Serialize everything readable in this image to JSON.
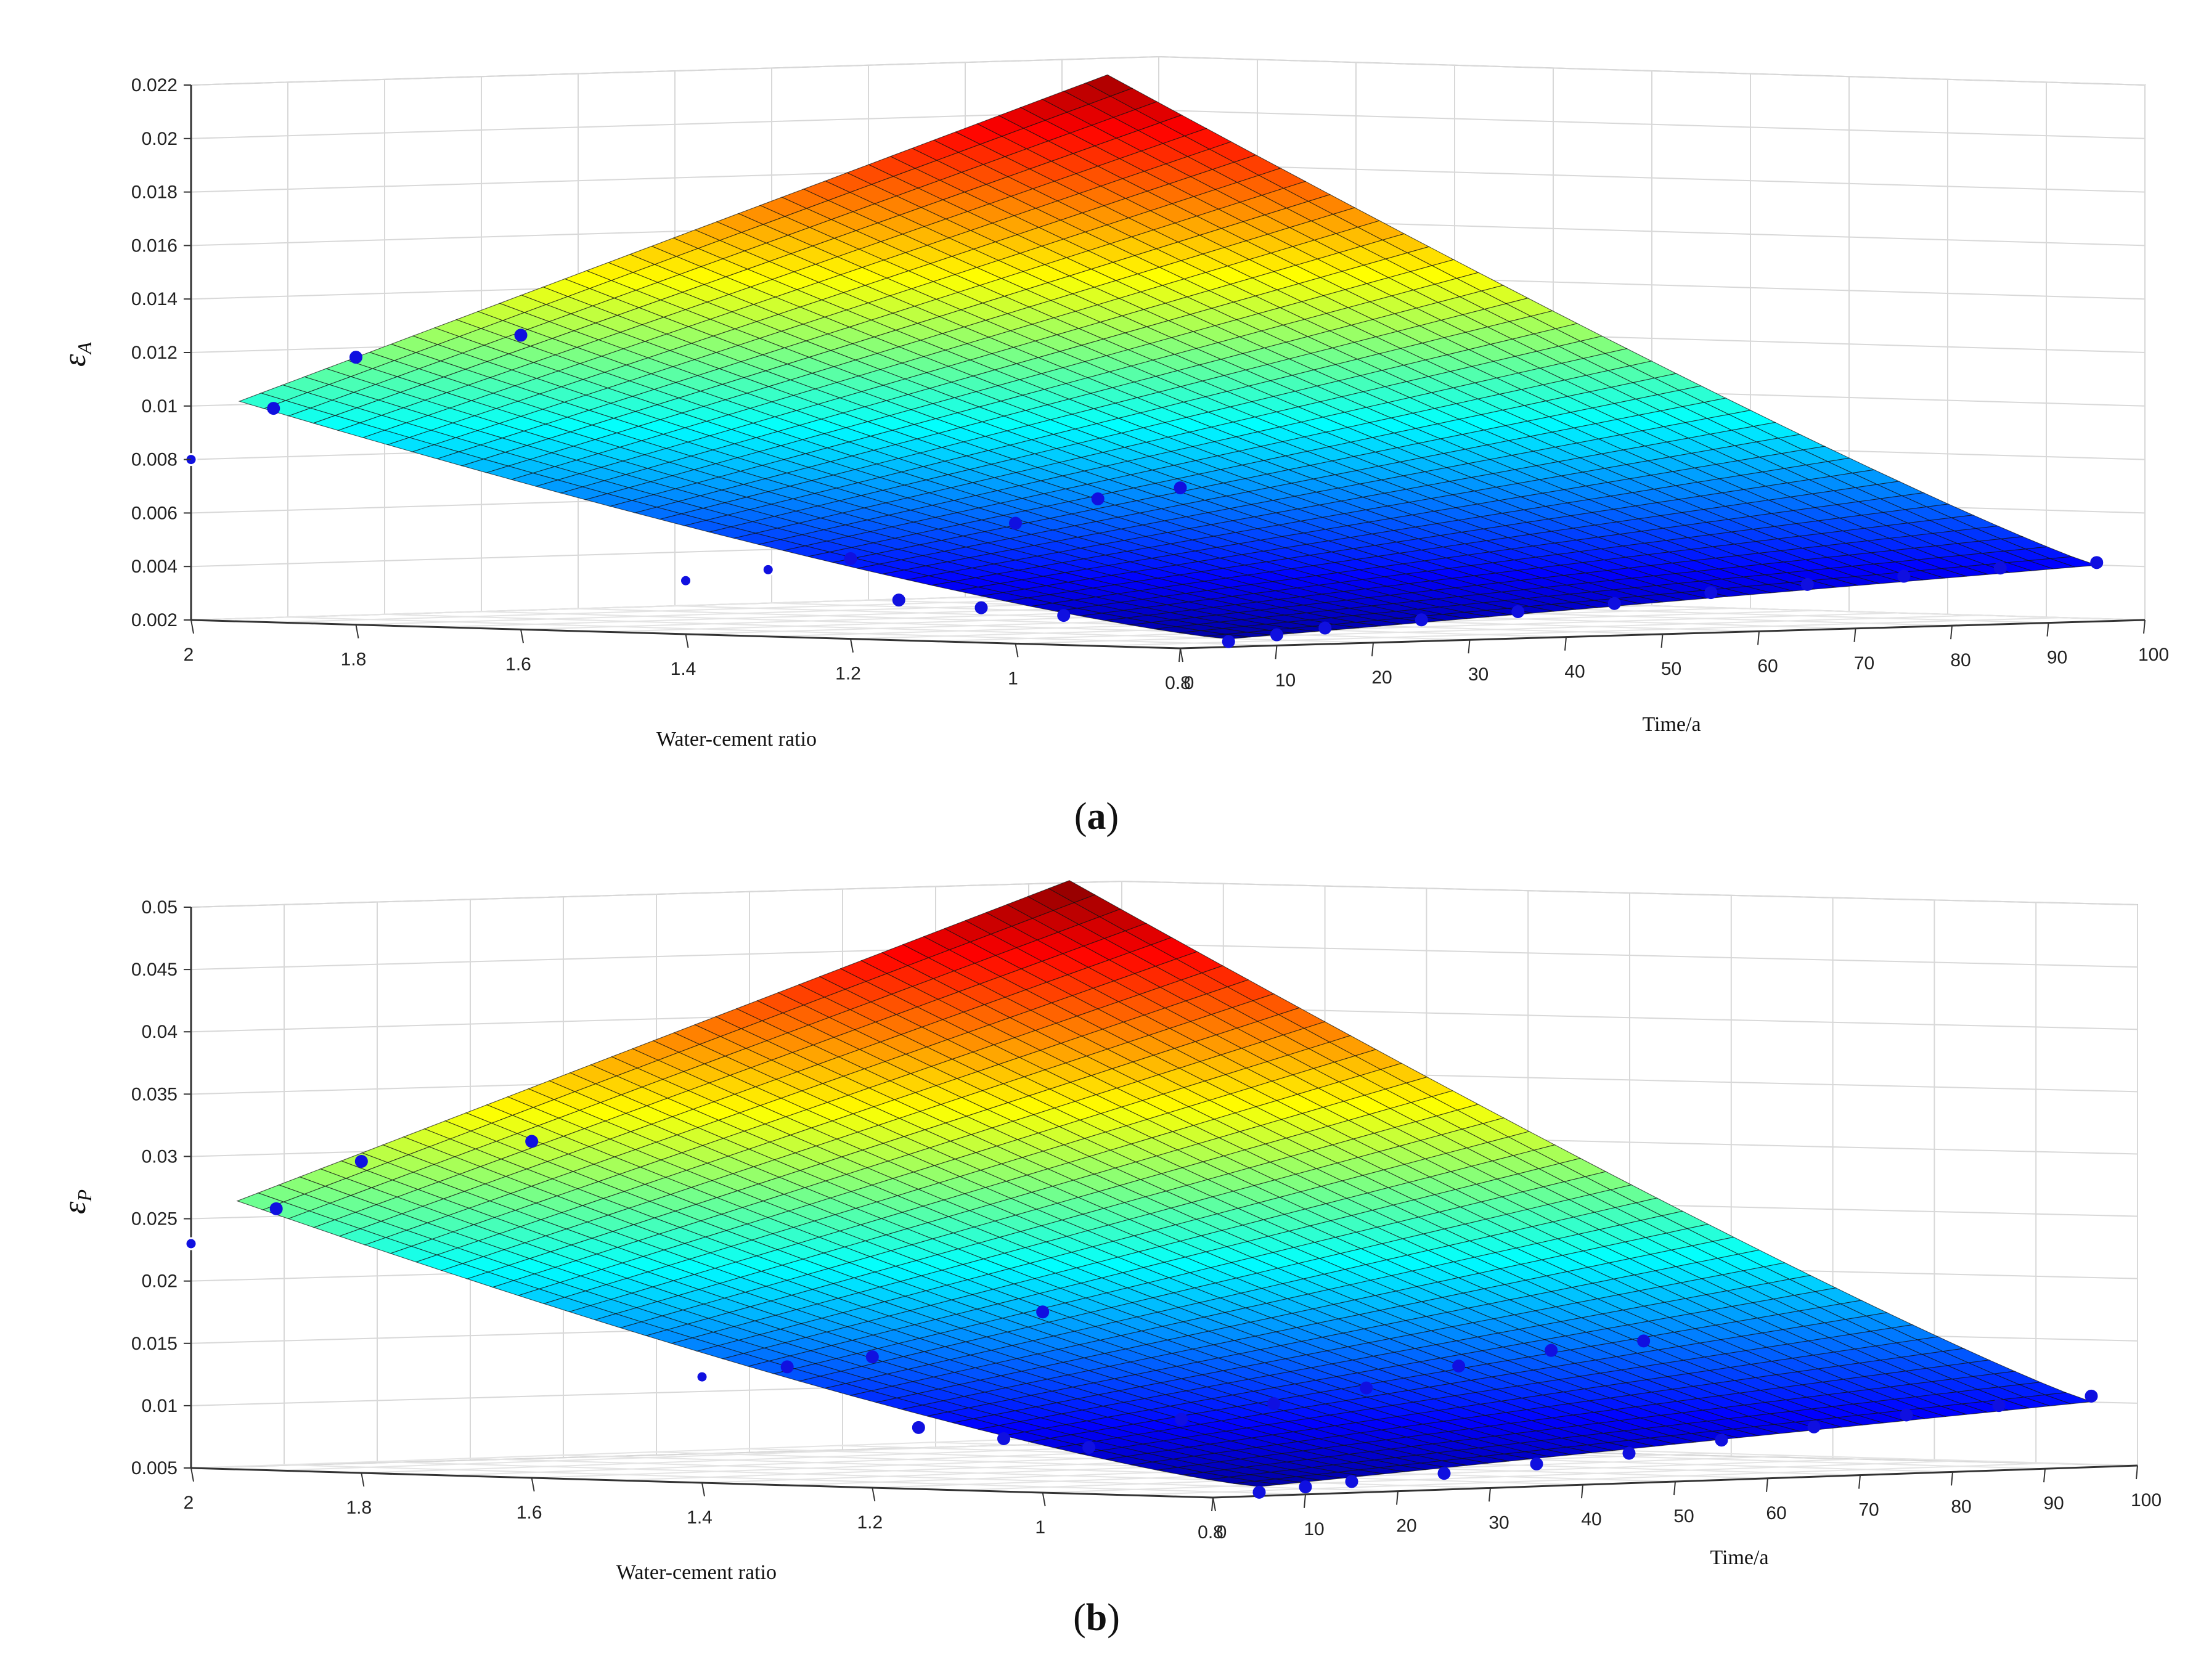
{
  "chart_data": [
    {
      "type": "surface3d",
      "caption_label": "a",
      "zlabel": "εA",
      "zlabel_main": "ε",
      "zlabel_sub": "A",
      "xlabel": "Water-cement ratio",
      "ylabel": "Time/a",
      "zlim": [
        0.002,
        0.022
      ],
      "z_ticks": [
        "0.002",
        "0.004",
        "0.006",
        "0.008",
        "0.01",
        "0.012",
        "0.014",
        "0.016",
        "0.018",
        "0.02",
        "0.022"
      ],
      "x_ticks": [
        "2",
        "1.8",
        "1.6",
        "1.4",
        "1.2",
        "1",
        "0.8"
      ],
      "y_ticks": [
        "0",
        "10",
        "20",
        "30",
        "40",
        "50",
        "60",
        "70",
        "80",
        "90",
        "100"
      ],
      "surface": {
        "x_range": [
          0.8,
          2.0
        ],
        "y_range": [
          5,
          95
        ],
        "z_corners": {
          "w2_t0": 0.0095,
          "w08_t0": 0.0022,
          "w08_t100": 0.0042,
          "w2_t100": 0.022
        }
      },
      "points": [
        {
          "w": 2.0,
          "t": 0,
          "z": 0.008
        },
        {
          "w": 1.9,
          "t": 0,
          "z": 0.01
        },
        {
          "w": 1.8,
          "t": 0,
          "z": 0.012
        },
        {
          "w": 1.6,
          "t": 0,
          "z": 0.013
        },
        {
          "w": 1.4,
          "t": 0,
          "z": 0.004
        },
        {
          "w": 1.3,
          "t": 0,
          "z": 0.0045
        },
        {
          "w": 1.2,
          "t": 0,
          "z": 0.005
        },
        {
          "w": 1.0,
          "t": 0,
          "z": 0.0065
        },
        {
          "w": 0.9,
          "t": 0,
          "z": 0.0075
        },
        {
          "w": 0.8,
          "t": 0,
          "z": 0.008
        },
        {
          "w": 0.8,
          "t": 5,
          "z": 0.0022
        },
        {
          "w": 0.8,
          "t": 10,
          "z": 0.0024
        },
        {
          "w": 0.8,
          "t": 15,
          "z": 0.0026
        },
        {
          "w": 0.8,
          "t": 25,
          "z": 0.0028
        },
        {
          "w": 0.8,
          "t": 35,
          "z": 0.003
        },
        {
          "w": 0.8,
          "t": 45,
          "z": 0.0032
        },
        {
          "w": 0.8,
          "t": 55,
          "z": 0.0035
        },
        {
          "w": 0.8,
          "t": 65,
          "z": 0.0037
        },
        {
          "w": 0.8,
          "t": 75,
          "z": 0.0039
        },
        {
          "w": 0.8,
          "t": 85,
          "z": 0.0041
        },
        {
          "w": 0.8,
          "t": 95,
          "z": 0.0042
        },
        {
          "w": 1.0,
          "t": 5,
          "z": 0.003
        },
        {
          "w": 1.1,
          "t": 5,
          "z": 0.0032
        },
        {
          "w": 1.2,
          "t": 5,
          "z": 0.0034
        }
      ]
    },
    {
      "type": "surface3d",
      "caption_label": "b",
      "zlabel": "εP",
      "zlabel_main": "ε",
      "zlabel_sub": "P",
      "xlabel": "Water-cement ratio",
      "ylabel": "Time/a",
      "zlim": [
        0.005,
        0.05
      ],
      "z_ticks": [
        "0.005",
        "0.01",
        "0.015",
        "0.02",
        "0.025",
        "0.03",
        "0.035",
        "0.04",
        "0.045",
        "0.05"
      ],
      "x_ticks": [
        "2",
        "1.8",
        "1.6",
        "1.4",
        "1.2",
        "1",
        "0.8"
      ],
      "y_ticks": [
        "0",
        "10",
        "20",
        "30",
        "40",
        "50",
        "60",
        "70",
        "80",
        "90",
        "100"
      ],
      "surface": {
        "x_range": [
          0.8,
          2.0
        ],
        "y_range": [
          5,
          95
        ],
        "z_corners": {
          "w2_t0": 0.025,
          "w08_t0": 0.0055,
          "w08_t100": 0.0105,
          "w2_t100": 0.051
        }
      },
      "points": [
        {
          "w": 2.0,
          "t": 0,
          "z": 0.023
        },
        {
          "w": 1.9,
          "t": 0,
          "z": 0.026
        },
        {
          "w": 1.8,
          "t": 0,
          "z": 0.03
        },
        {
          "w": 1.6,
          "t": 0,
          "z": 0.032
        },
        {
          "w": 1.4,
          "t": 0,
          "z": 0.0135
        },
        {
          "w": 1.3,
          "t": 0,
          "z": 0.0145
        },
        {
          "w": 1.2,
          "t": 0,
          "z": 0.0155
        },
        {
          "w": 1.0,
          "t": 0,
          "z": 0.0195
        },
        {
          "w": 0.8,
          "t": 5,
          "z": 0.0053
        },
        {
          "w": 0.8,
          "t": 10,
          "z": 0.0056
        },
        {
          "w": 0.8,
          "t": 15,
          "z": 0.0059
        },
        {
          "w": 0.8,
          "t": 25,
          "z": 0.0063
        },
        {
          "w": 0.8,
          "t": 35,
          "z": 0.0068
        },
        {
          "w": 0.8,
          "t": 45,
          "z": 0.0074
        },
        {
          "w": 0.8,
          "t": 55,
          "z": 0.0082
        },
        {
          "w": 0.8,
          "t": 65,
          "z": 0.009
        },
        {
          "w": 0.8,
          "t": 75,
          "z": 0.0097
        },
        {
          "w": 0.8,
          "t": 85,
          "z": 0.0102
        },
        {
          "w": 0.8,
          "t": 95,
          "z": 0.0107
        },
        {
          "w": 1.0,
          "t": 5,
          "z": 0.0085
        },
        {
          "w": 1.1,
          "t": 5,
          "z": 0.009
        },
        {
          "w": 1.2,
          "t": 5,
          "z": 0.0097
        },
        {
          "w": 1.0,
          "t": 15,
          "z": 0.0105
        },
        {
          "w": 1.0,
          "t": 25,
          "z": 0.0115
        },
        {
          "w": 1.0,
          "t": 35,
          "z": 0.0125
        },
        {
          "w": 1.0,
          "t": 45,
          "z": 0.014
        },
        {
          "w": 1.0,
          "t": 55,
          "z": 0.015
        },
        {
          "w": 1.0,
          "t": 65,
          "z": 0.0155
        }
      ]
    }
  ],
  "colors": {
    "surface_colormap": "jet",
    "point_fill": "#1010e0",
    "point_stroke": "#ffffff",
    "grid": "#d8d8d8",
    "axis": "#333333"
  }
}
